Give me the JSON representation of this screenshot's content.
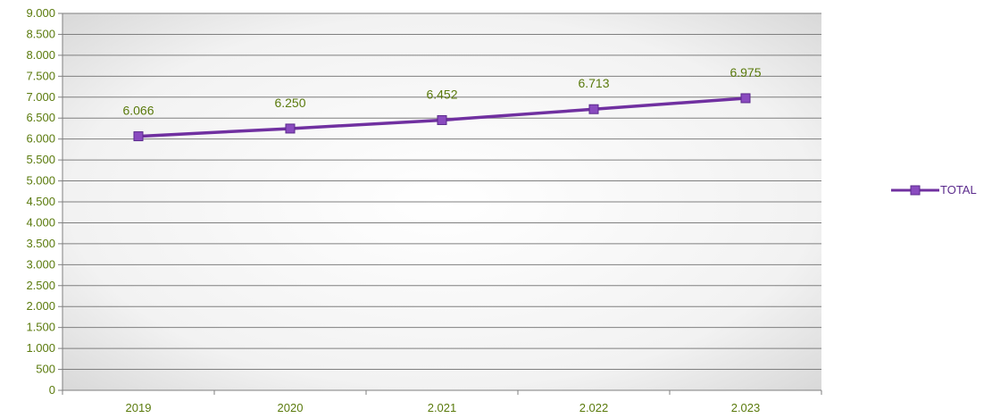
{
  "chart_data": {
    "type": "line",
    "categories": [
      "2019",
      "2020",
      "2.021",
      "2.022",
      "2.023"
    ],
    "series": [
      {
        "name": "TOTAL",
        "values": [
          6066,
          6250,
          6452,
          6713,
          6975
        ]
      }
    ],
    "data_labels": [
      "6.066",
      "6.250",
      "6.452",
      "6.713",
      "6.975"
    ],
    "y_ticks": [
      0,
      500,
      1000,
      1500,
      2000,
      2500,
      3000,
      3500,
      4000,
      4500,
      5000,
      5500,
      6000,
      6500,
      7000,
      7500,
      8000,
      8500,
      9000
    ],
    "y_tick_labels": [
      "0",
      "500",
      "1.000",
      "1.500",
      "2.000",
      "2.500",
      "3.000",
      "3.500",
      "4.000",
      "4.500",
      "5.000",
      "5.500",
      "6.000",
      "6.500",
      "7.000",
      "7.500",
      "8.000",
      "8.500",
      "9.000"
    ],
    "ylim": [
      0,
      9000
    ],
    "grid": true,
    "legend_position": "right",
    "colors": {
      "series": "#7030a0",
      "marker": "#8a4bbf",
      "text": "#5a7a0c",
      "grid": "#7f7f7f"
    }
  }
}
